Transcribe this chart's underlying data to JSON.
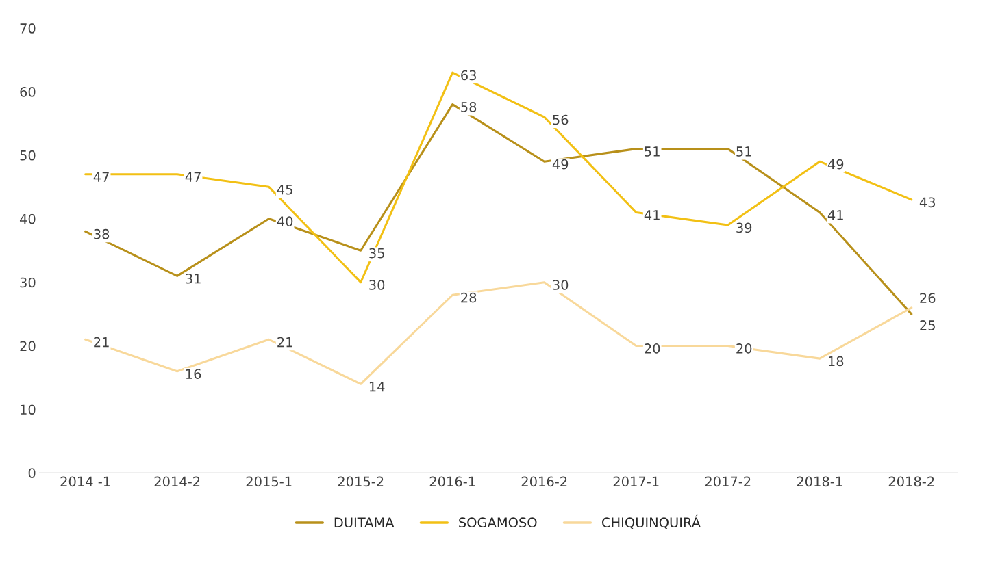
{
  "chart_data": {
    "type": "line",
    "categories": [
      "2014 -1",
      "2014-2",
      "2015-1",
      "2015-2",
      "2016-1",
      "2016-2",
      "2017-1",
      "2017-2",
      "2018-1",
      "2018-2"
    ],
    "series": [
      {
        "name": "DUITAMA",
        "color": "#b8901a",
        "values": [
          38,
          31,
          40,
          35,
          58,
          49,
          51,
          51,
          41,
          25
        ]
      },
      {
        "name": "SOGAMOSO",
        "color": "#f2c014",
        "values": [
          47,
          47,
          45,
          30,
          63,
          56,
          41,
          39,
          49,
          43
        ]
      },
      {
        "name": "CHIQUINQUIRÁ",
        "color": "#f8d89a",
        "values": [
          21,
          16,
          21,
          14,
          28,
          30,
          20,
          20,
          18,
          26
        ]
      }
    ],
    "ylim": [
      0,
      70
    ],
    "yticks": [
      0,
      10,
      20,
      30,
      40,
      50,
      60,
      70
    ],
    "grid": false,
    "legend": "bottom",
    "data_labels": true,
    "marker": "none",
    "line_style": "solid"
  }
}
